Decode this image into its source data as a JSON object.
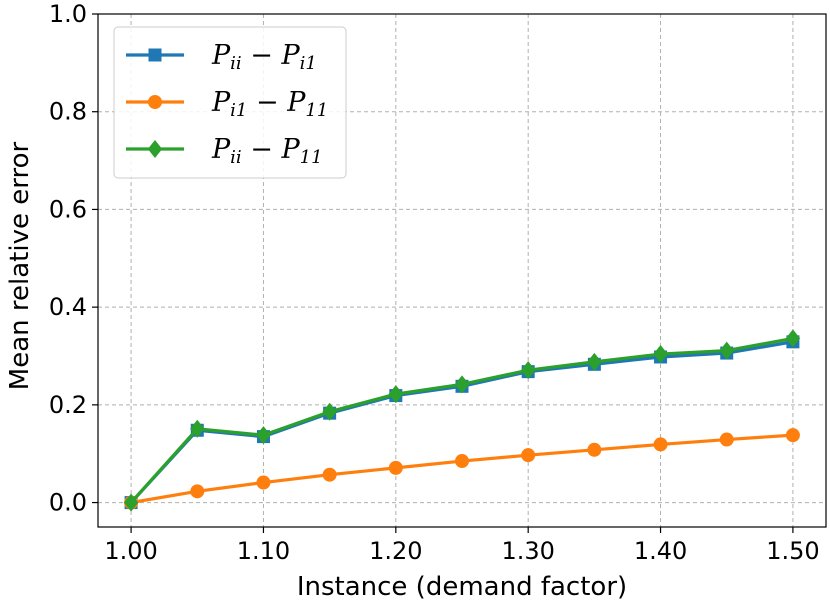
{
  "chart_data": {
    "type": "line",
    "title": "",
    "xlabel": "Instance (demand factor)",
    "ylabel": "Mean relative error",
    "xlim": [
      0.975,
      1.525
    ],
    "ylim": [
      -0.05,
      1.0
    ],
    "grid": true,
    "legend_position": "top-left",
    "x": [
      1.0,
      1.05,
      1.1,
      1.15,
      1.2,
      1.25,
      1.3,
      1.35,
      1.4,
      1.45,
      1.5
    ],
    "x_ticks": [
      1.0,
      1.1,
      1.2,
      1.3,
      1.4,
      1.5
    ],
    "x_tick_labels": [
      "1.00",
      "1.10",
      "1.20",
      "1.30",
      "1.40",
      "1.50"
    ],
    "y_ticks": [
      0.0,
      0.2,
      0.4,
      0.6,
      0.8,
      1.0
    ],
    "y_tick_labels": [
      "0.0",
      "0.2",
      "0.4",
      "0.6",
      "0.8",
      "1.0"
    ],
    "series": [
      {
        "name": "P_ii − P_i1",
        "legend": {
          "main1": "P",
          "sub1": "ii",
          "op": " − ",
          "main2": "P",
          "sub2": "i1"
        },
        "color": "#1f77b4",
        "marker": "square",
        "values": [
          0.0,
          0.148,
          0.135,
          0.183,
          0.219,
          0.238,
          0.268,
          0.283,
          0.298,
          0.306,
          0.329
        ]
      },
      {
        "name": "P_i1 − P_11",
        "legend": {
          "main1": "P",
          "sub1": "i1",
          "op": " − ",
          "main2": "P",
          "sub2": "11"
        },
        "color": "#ff7f0e",
        "marker": "circle",
        "values": [
          0.0,
          0.023,
          0.041,
          0.057,
          0.071,
          0.085,
          0.097,
          0.108,
          0.119,
          0.129,
          0.138
        ]
      },
      {
        "name": "P_ii − P_11",
        "legend": {
          "main1": "P",
          "sub1": "ii",
          "op": " − ",
          "main2": "P",
          "sub2": "11"
        },
        "color": "#2ca02c",
        "marker": "diamond",
        "values": [
          0.0,
          0.151,
          0.138,
          0.186,
          0.222,
          0.242,
          0.271,
          0.288,
          0.304,
          0.311,
          0.336
        ]
      }
    ]
  }
}
